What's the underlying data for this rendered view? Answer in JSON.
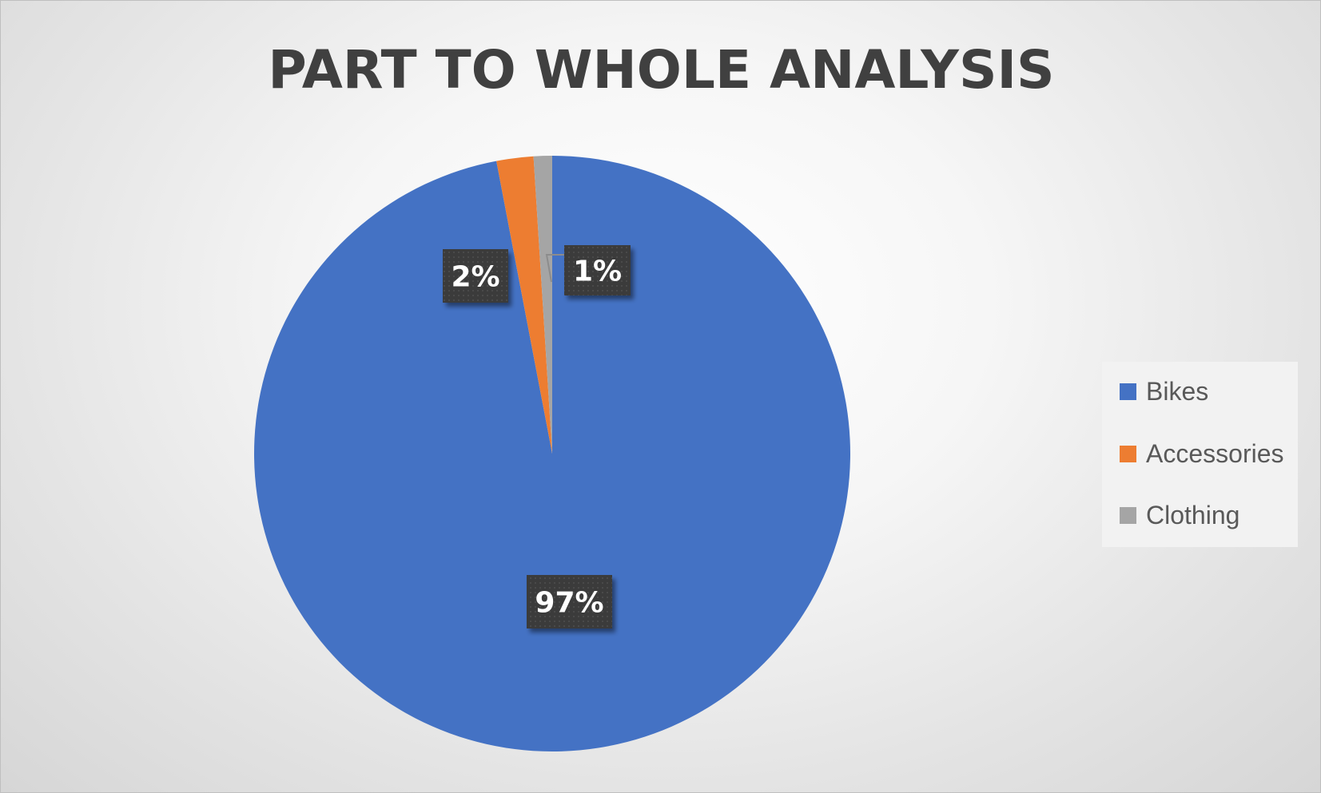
{
  "chart_data": {
    "type": "pie",
    "title": "PART TO WHOLE ANALYSIS",
    "categories": [
      "Bikes",
      "Accessories",
      "Clothing"
    ],
    "values": [
      97,
      2,
      1
    ],
    "data_labels": [
      "97%",
      "2%",
      "1%"
    ],
    "colors": [
      "#4472C4",
      "#ED7D31",
      "#A5A5A5"
    ],
    "legend_position": "right"
  },
  "legend": {
    "items": [
      {
        "label": "Bikes",
        "color": "#4472C4"
      },
      {
        "label": "Accessories",
        "color": "#ED7D31"
      },
      {
        "label": "Clothing",
        "color": "#A5A5A5"
      }
    ]
  }
}
